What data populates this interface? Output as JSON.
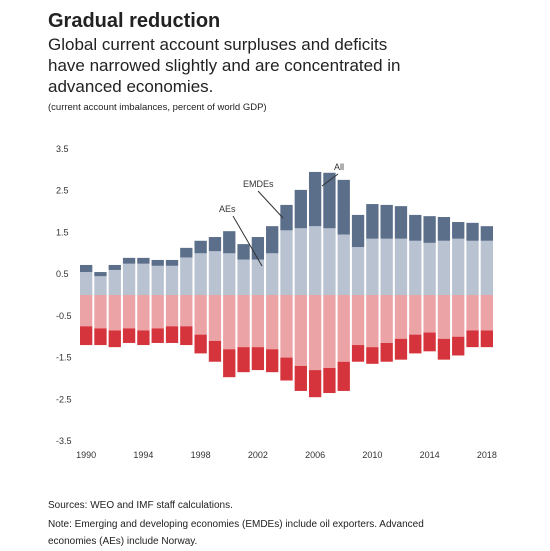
{
  "chart_data": {
    "type": "stacked_bar",
    "title": "Gradual reduction",
    "subtitle": [
      "Global current account surpluses and deficits",
      "have narrowed slightly and are concentrated in",
      "advanced economies."
    ],
    "units": "(current account imbalances, percent of world GDP)",
    "annotation": "All",
    "x": [
      1990,
      1991,
      1992,
      1993,
      1994,
      1995,
      1996,
      1997,
      1998,
      1999,
      2000,
      2001,
      2002,
      2003,
      2004,
      2005,
      2006,
      2007,
      2008,
      2009,
      2010,
      2011,
      2012,
      2013,
      2014,
      2015,
      2016,
      2017,
      2018
    ],
    "series": [
      {
        "name": "AEs",
        "color": "#b8c2d1",
        "values": [
          0.55,
          0.45,
          0.6,
          0.75,
          0.75,
          0.7,
          0.7,
          0.9,
          1.0,
          1.05,
          1.0,
          0.85,
          0.85,
          1.0,
          1.55,
          1.6,
          1.65,
          1.6,
          1.45,
          1.15,
          1.35,
          1.35,
          1.35,
          1.3,
          1.25,
          1.3,
          1.35,
          1.3,
          1.3
        ]
      },
      {
        "name": "EMDEs",
        "color": "#5b6e8a",
        "values": [
          0.17,
          0.1,
          0.12,
          0.14,
          0.14,
          0.14,
          0.14,
          0.23,
          0.3,
          0.34,
          0.53,
          0.37,
          0.54,
          0.65,
          0.61,
          0.92,
          1.3,
          1.33,
          1.31,
          0.77,
          0.83,
          0.81,
          0.78,
          0.62,
          0.64,
          0.57,
          0.4,
          0.43,
          0.35
        ]
      },
      {
        "color": "#eca3a6",
        "values": [
          -0.75,
          -0.8,
          -0.85,
          -0.8,
          -0.85,
          -0.8,
          -0.75,
          -0.75,
          -0.95,
          -1.1,
          -1.3,
          -1.25,
          -1.25,
          -1.3,
          -1.5,
          -1.7,
          -1.8,
          -1.75,
          -1.6,
          -1.2,
          -1.25,
          -1.15,
          -1.05,
          -0.95,
          -0.9,
          -1.05,
          -1.0,
          -0.85,
          -0.85
        ]
      },
      {
        "color": "#d6343c",
        "values": [
          -0.45,
          -0.4,
          -0.4,
          -0.35,
          -0.35,
          -0.35,
          -0.4,
          -0.45,
          -0.45,
          -0.5,
          -0.67,
          -0.6,
          -0.55,
          -0.55,
          -0.55,
          -0.6,
          -0.65,
          -0.6,
          -0.7,
          -0.4,
          -0.4,
          -0.45,
          -0.5,
          -0.45,
          -0.45,
          -0.5,
          -0.45,
          -0.4,
          -0.4
        ]
      }
    ],
    "xlim": [
      1989.5,
      2018.5
    ],
    "xticks": [
      1990,
      1994,
      1998,
      2002,
      2006,
      2010,
      2014,
      2018
    ],
    "ylim": [
      -3.5,
      3.5
    ],
    "yticks": [
      -3.5,
      -2.5,
      -1.5,
      -0.5,
      0.5,
      1.5,
      2.5,
      3.5
    ],
    "grid": false,
    "footnotes": [
      "Sources: WEO and IMF staff calculations.",
      "Note: Emerging and developing economies (EMDEs) include oil exporters. Advanced",
      "economies (AEs) include Norway."
    ]
  }
}
